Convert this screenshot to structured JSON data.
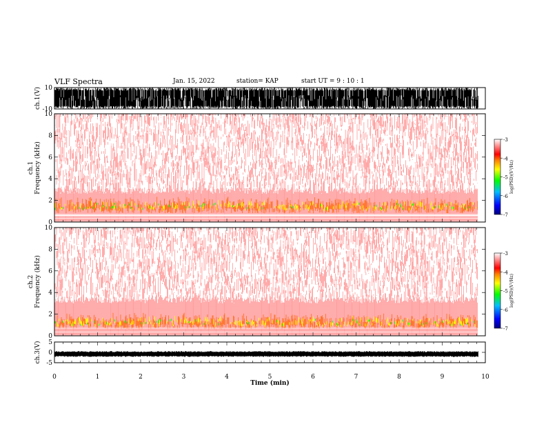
{
  "header": {
    "title": "VLF Spectra",
    "date": "Jan. 15, 2022",
    "station": "station= KAP",
    "start": "start  UT =  9 : 10 : 1"
  },
  "chart_data": [
    {
      "type": "line",
      "panel": "ch1-waveform",
      "ylabel": "ch.1(V)",
      "ylim": [
        -10,
        10
      ],
      "yticks": [
        "10",
        "-10"
      ],
      "x_range_min": [
        0,
        9.83
      ],
      "style": "dense black waveform saturating near ±10 V"
    },
    {
      "type": "heatmap",
      "panel": "ch1-spectrogram",
      "ylabel": "ch.1\nFrequency (kHz)",
      "ylim": [
        0,
        10
      ],
      "yticks": [
        "0",
        "2",
        "4",
        "6",
        "8",
        "10"
      ],
      "x_range_min": [
        0,
        9.83
      ],
      "intense_band_khz": [
        0.8,
        2.6
      ],
      "colorbar": {
        "label": "log(PSD)(V²/Hz)",
        "range": [
          -7,
          -3
        ],
        "ticks": [
          "-3",
          "-4",
          "-5",
          "-6",
          "-7"
        ]
      }
    },
    {
      "type": "heatmap",
      "panel": "ch2-spectrogram",
      "ylabel": "ch.2\nFrequency (kHz)",
      "ylim": [
        0,
        10
      ],
      "yticks": [
        "0",
        "2",
        "4",
        "6",
        "8",
        "10"
      ],
      "x_range_min": [
        0,
        9.83
      ],
      "intense_band_khz": [
        0.6,
        3.0
      ],
      "colorbar": {
        "label": "log(PSD)(V²/Hz)",
        "range": [
          -7,
          -3
        ],
        "ticks": [
          "-3",
          "-4",
          "-5",
          "-6",
          "-7"
        ]
      }
    },
    {
      "type": "line",
      "panel": "ch3-waveform",
      "ylabel": "ch.3(V)",
      "ylim": [
        -5,
        5
      ],
      "yticks": [
        "5",
        "0",
        "-5"
      ],
      "x_range_min": [
        0,
        9.83
      ],
      "level_v": -0.8,
      "style": "thin black band near -0.8 V"
    }
  ],
  "xaxis": {
    "label": "Time (min)",
    "ticks": [
      "0",
      "1",
      "2",
      "3",
      "4",
      "5",
      "6",
      "7",
      "8",
      "9",
      "10"
    ],
    "range": [
      0,
      10
    ]
  },
  "colors": {
    "spec_red": "#ff0000",
    "spec_yellow": "#ffff00",
    "spec_green": "#00ff00",
    "ink": "#000000"
  }
}
